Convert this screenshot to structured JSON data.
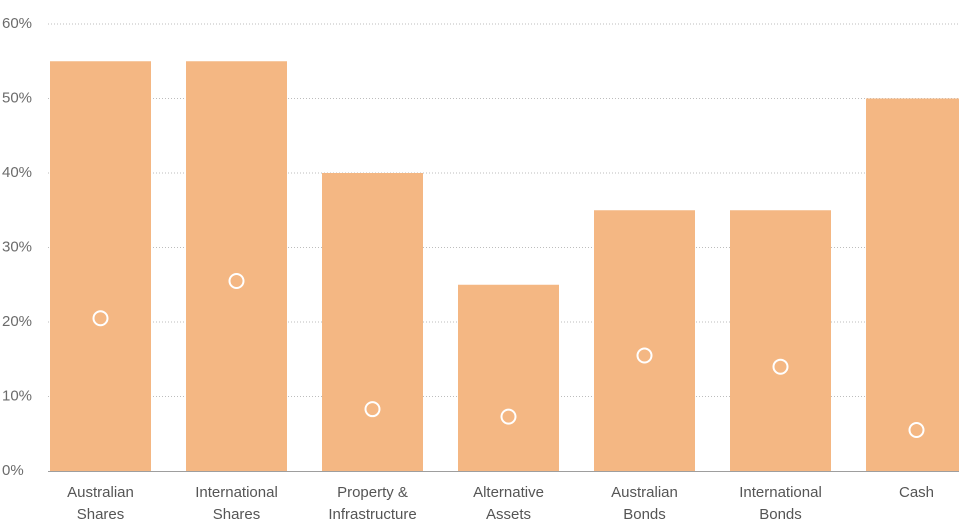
{
  "chart_data": {
    "type": "bar",
    "categories": [
      [
        "Australian",
        "Shares"
      ],
      [
        "International",
        "Shares"
      ],
      [
        "Property &",
        "Infrastructure"
      ],
      [
        "Alternative",
        "Assets"
      ],
      [
        "Australian",
        "Bonds"
      ],
      [
        "International",
        "Bonds"
      ],
      [
        "Cash"
      ]
    ],
    "series": [
      {
        "type": "bar",
        "values": [
          55,
          55,
          40,
          25,
          35,
          35,
          50
        ]
      },
      {
        "type": "scatter",
        "values": [
          20.5,
          25.5,
          8.3,
          7.3,
          15.5,
          14.0,
          5.5
        ]
      }
    ],
    "ylim": [
      0,
      60
    ],
    "yticks": [
      0,
      10,
      20,
      30,
      40,
      50,
      60
    ],
    "ytick_labels": [
      "0%",
      "10%",
      "20%",
      "30%",
      "40%",
      "50%",
      "60%"
    ],
    "grid": true,
    "legend": "none",
    "colors": {
      "bar": "#f4b783",
      "marker_stroke": "#ffffff",
      "grid": "#bdbdbd",
      "axis": "#9e9e9e"
    }
  }
}
